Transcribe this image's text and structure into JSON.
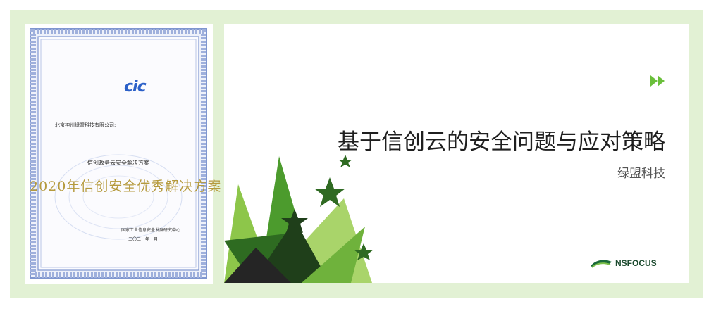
{
  "certificate": {
    "logo_text": "cic",
    "recipient": "北京神州绿盟科技有限公司:",
    "project": "信创政务云安全解决方案",
    "award": "2020年信创安全优秀解决方案",
    "issuer": "国家工业信息安全发展研究中心",
    "date": "二〇二一年一月"
  },
  "slide": {
    "title": "基于信创云的安全问题与应对策略",
    "subtitle": "绿盟科技",
    "brand": "NSFOCUS",
    "nav_icon": "double-chevron-right-icon"
  },
  "colors": {
    "frame_bg": "#e2f1d4",
    "nav_green": "#6abf3b",
    "cert_border": "#7f96cf",
    "award_gold": "#b59a3d",
    "logo_blue": "#2b60c8"
  }
}
